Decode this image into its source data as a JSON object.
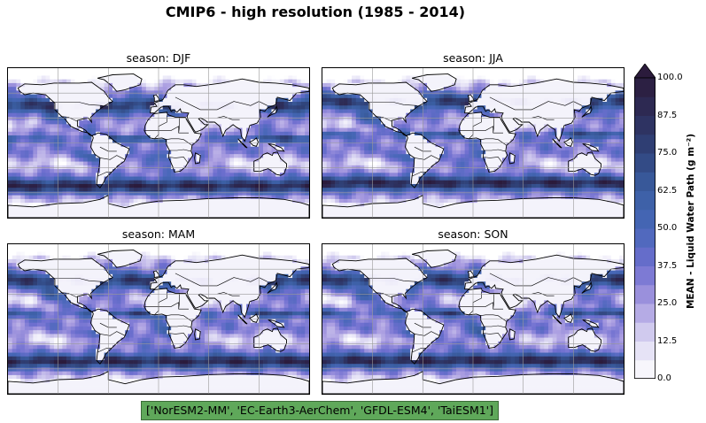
{
  "figure": {
    "title": "CMIP6 - high resolution (1985 - 2014)",
    "models_note": "['NorESM2-MM', 'EC-Earth3-AerChem', 'GFDL-ESM4', 'TaiESM1']"
  },
  "panels": [
    {
      "id": "djf",
      "title": "season: DJF",
      "season": "DJF"
    },
    {
      "id": "jja",
      "title": "season: JJA",
      "season": "JJA"
    },
    {
      "id": "mam",
      "title": "season: MAM",
      "season": "MAM"
    },
    {
      "id": "son",
      "title": "season: SON",
      "season": "SON"
    }
  ],
  "colorbar": {
    "label": "MEAN - Liquid Water Path (g m⁻²)",
    "min": 0.0,
    "max": 100.0,
    "extend": "max",
    "ticks": [
      "0.0",
      "12.5",
      "25.0",
      "37.5",
      "50.0",
      "62.5",
      "75.0",
      "87.5",
      "100.0"
    ],
    "colors": [
      "#ffffff",
      "#ddd9f3",
      "#a89be0",
      "#6f6fd0",
      "#4767b8",
      "#3b5fa3",
      "#30447c",
      "#2d2d59",
      "#2b1b3c"
    ]
  }
}
